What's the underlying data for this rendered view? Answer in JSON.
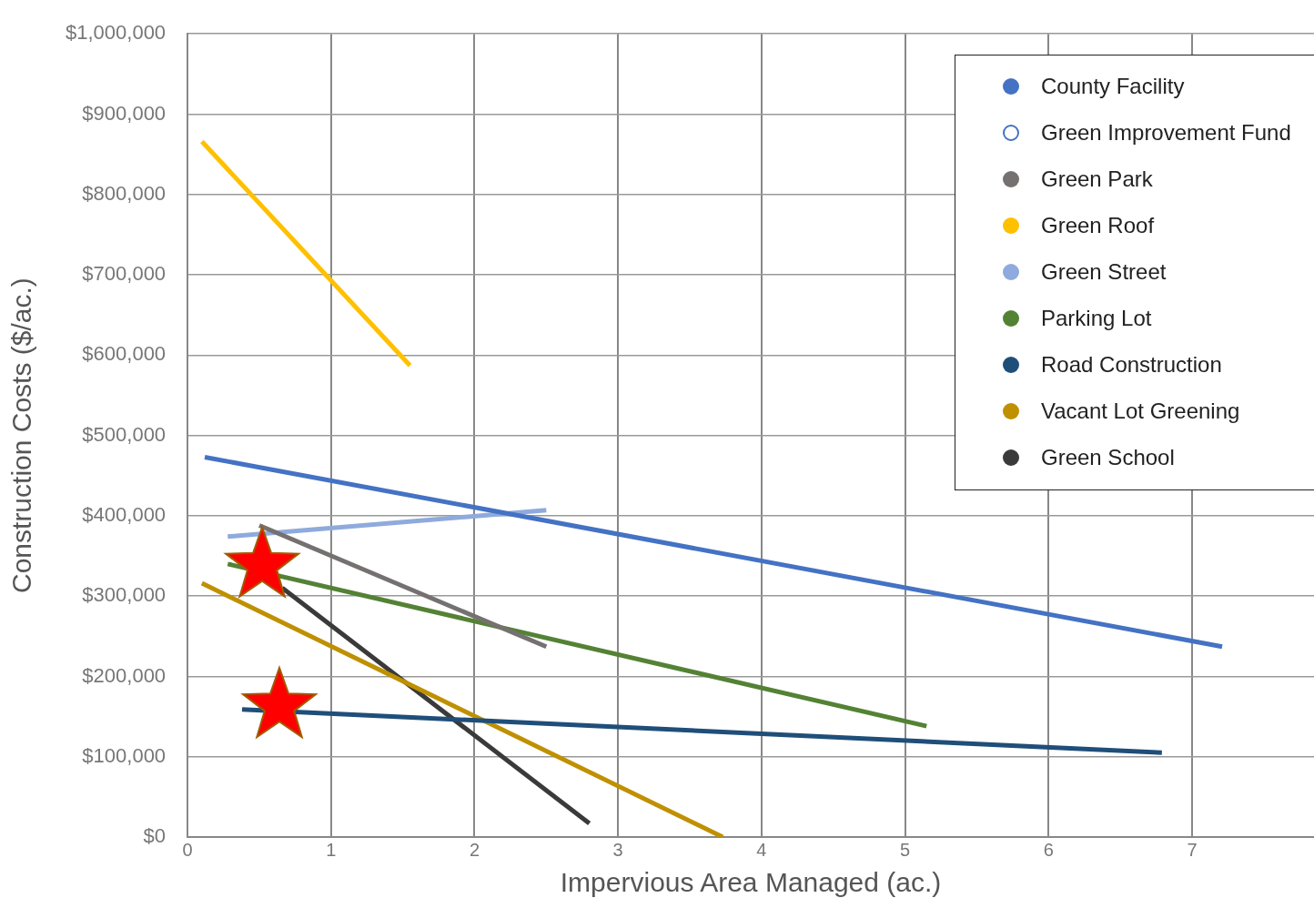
{
  "chart_data": {
    "type": "line",
    "xlabel": "Impervious Area Managed (ac.)",
    "ylabel": "Construction Costs ($/ac.)",
    "xlim": [
      0,
      7.85
    ],
    "xticks": [
      0,
      1,
      2,
      3,
      4,
      5,
      6,
      7
    ],
    "ylim": [
      0,
      1000000
    ],
    "yticks": [
      {
        "value": 0,
        "label": "$0"
      },
      {
        "value": 100000,
        "label": "$100,000"
      },
      {
        "value": 200000,
        "label": "$200,000"
      },
      {
        "value": 300000,
        "label": "$300,000"
      },
      {
        "value": 400000,
        "label": "$400,000"
      },
      {
        "value": 500000,
        "label": "$500,000"
      },
      {
        "value": 600000,
        "label": "$600,000"
      },
      {
        "value": 700000,
        "label": "$700,000"
      },
      {
        "value": 800000,
        "label": "$800,000"
      },
      {
        "value": 900000,
        "label": "$900,000"
      },
      {
        "value": 1000000,
        "label": "$1,000,000"
      }
    ],
    "grid": true,
    "legend": "top right",
    "marker": "none",
    "series": [
      {
        "name": "County Facility",
        "color": "#4472c4",
        "x": [
          0.12,
          7.21
        ],
        "values": [
          473000,
          237000
        ]
      },
      {
        "name": "Green Improvement Fund",
        "color": "#4472c4"
      },
      {
        "name": "Green Park",
        "color": "#767171",
        "x": [
          0.5,
          2.5
        ],
        "values": [
          388000,
          237000
        ]
      },
      {
        "name": "Green Roof",
        "color": "#ffc000",
        "x": [
          0.1,
          1.55
        ],
        "values": [
          866000,
          587000
        ]
      },
      {
        "name": "Green Street",
        "color": "#8faadc",
        "x": [
          0.28,
          2.5
        ],
        "values": [
          374000,
          407000
        ]
      },
      {
        "name": "Parking Lot",
        "color": "#548235",
        "x": [
          0.28,
          5.15
        ],
        "values": [
          340000,
          138000
        ]
      },
      {
        "name": "Road Construction",
        "color": "#1f4e79",
        "x": [
          0.38,
          6.79
        ],
        "values": [
          159000,
          105000
        ]
      },
      {
        "name": "Vacant Lot Greening",
        "color": "#bf9000",
        "x": [
          0.1,
          3.73
        ],
        "values": [
          316000,
          0
        ]
      },
      {
        "name": "Green School",
        "color": "#3a3a3a",
        "x": [
          0.66,
          2.8
        ],
        "values": [
          310000,
          17000
        ]
      },
      {
        "type": "scatter",
        "marker": "star",
        "color": "#ff0000",
        "x": [
          0.52,
          0.64
        ],
        "values": [
          338000,
          163000
        ]
      }
    ]
  }
}
